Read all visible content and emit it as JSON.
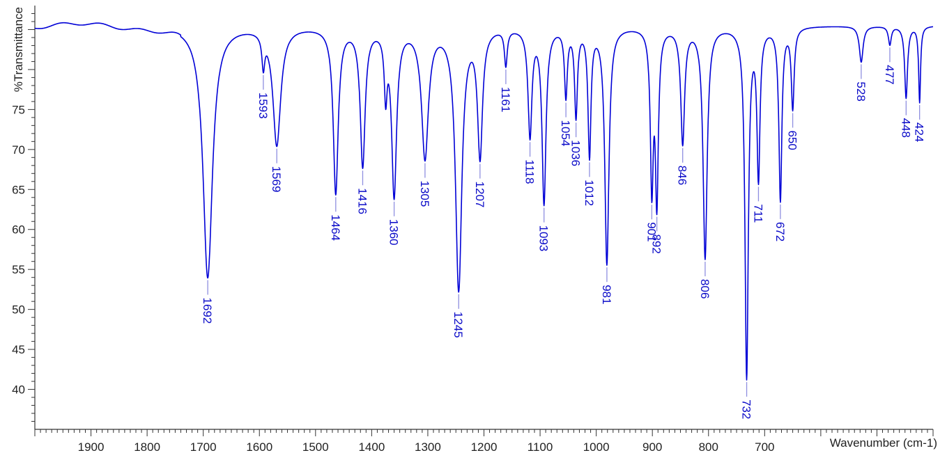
{
  "chart_data": {
    "type": "line",
    "title": "",
    "xlabel": "Wavenumber (cm-1)",
    "ylabel": "%Transmittance",
    "xlim": [
      2000,
      400
    ],
    "ylim": [
      35,
      88
    ],
    "x_reversed": true,
    "grid": false,
    "line_color": "#0000d6",
    "label_color": "#0a0ac8",
    "leader_color": "#8f8fe0",
    "x_ticks": [
      1900,
      1800,
      1700,
      1600,
      1500,
      1400,
      1300,
      1200,
      1100,
      1000,
      900,
      800,
      700
    ],
    "y_ticks": [
      40,
      45,
      50,
      55,
      60,
      65,
      70,
      75
    ],
    "baseline": 85.5,
    "peaks": [
      {
        "x": 1692,
        "y": 54.0,
        "label": "1692",
        "w": 9
      },
      {
        "x": 1593,
        "y": 81.5,
        "label": "1593",
        "w": 3
      },
      {
        "x": 1569,
        "y": 70.7,
        "label": "1569",
        "w": 8
      },
      {
        "x": 1464,
        "y": 64.7,
        "label": "1464",
        "w": 5
      },
      {
        "x": 1416,
        "y": 68.2,
        "label": "1416",
        "w": 5
      },
      {
        "x": 1375,
        "y": 77.8,
        "label": "",
        "w": 3
      },
      {
        "x": 1360,
        "y": 64.5,
        "label": "1360",
        "w": 5
      },
      {
        "x": 1305,
        "y": 69.2,
        "label": "1305",
        "w": 7
      },
      {
        "x": 1245,
        "y": 52.6,
        "label": "1245",
        "w": 6
      },
      {
        "x": 1207,
        "y": 69.5,
        "label": "1207",
        "w": 5
      },
      {
        "x": 1161,
        "y": 81.0,
        "label": "1161",
        "w": 3
      },
      {
        "x": 1118,
        "y": 72.0,
        "label": "1118",
        "w": 4
      },
      {
        "x": 1093,
        "y": 63.5,
        "label": "1093",
        "w": 4
      },
      {
        "x": 1054,
        "y": 77.0,
        "label": "1054",
        "w": 3
      },
      {
        "x": 1036,
        "y": 74.5,
        "label": "1036",
        "w": 3
      },
      {
        "x": 1012,
        "y": 69.5,
        "label": "1012",
        "w": 3
      },
      {
        "x": 981,
        "y": 55.8,
        "label": "981",
        "w": 4
      },
      {
        "x": 901,
        "y": 65.5,
        "label": "901",
        "w": 3
      },
      {
        "x": 892,
        "y": 63.8,
        "label": "892",
        "w": 3
      },
      {
        "x": 846,
        "y": 71.0,
        "label": "846",
        "w": 4
      },
      {
        "x": 806,
        "y": 56.5,
        "label": "806",
        "w": 4
      },
      {
        "x": 732,
        "y": 41.5,
        "label": "732",
        "w": 3
      },
      {
        "x": 711,
        "y": 66.8,
        "label": "711",
        "w": 3
      },
      {
        "x": 672,
        "y": 63.8,
        "label": "672",
        "w": 3
      },
      {
        "x": 650,
        "y": 75.4,
        "label": "650",
        "w": 3
      },
      {
        "x": 528,
        "y": 81.0,
        "label": "528",
        "w": 4
      },
      {
        "x": 477,
        "y": 83.2,
        "label": "477",
        "w": 3
      },
      {
        "x": 448,
        "y": 76.5,
        "label": "448",
        "w": 3
      },
      {
        "x": 424,
        "y": 76.0,
        "label": "424",
        "w": 2
      }
    ]
  }
}
